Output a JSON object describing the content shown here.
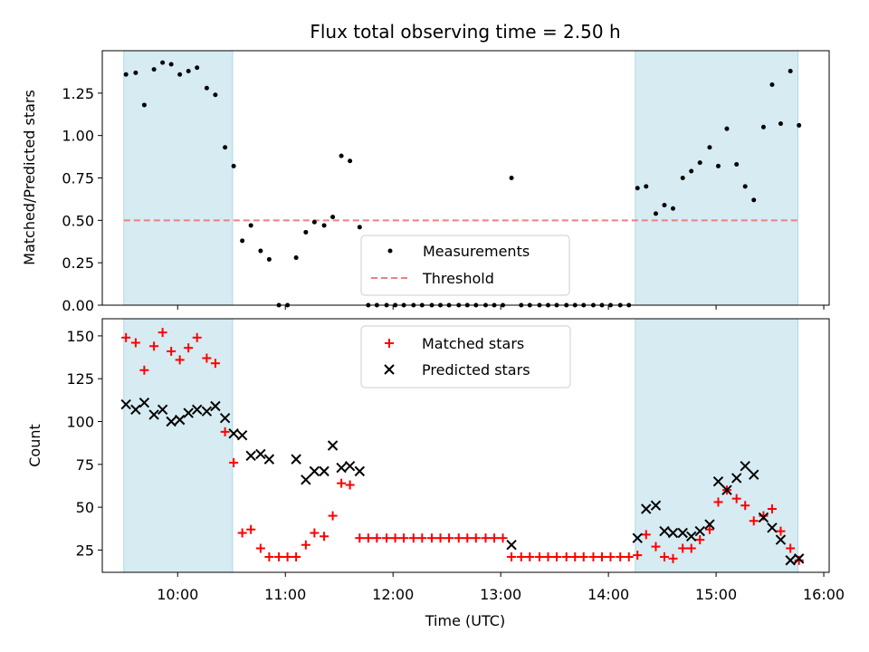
{
  "chart_data": [
    {
      "type": "scatter",
      "title": "Flux total observing time = 2.50 h",
      "xlabel": "",
      "ylabel": "Matched/Predicted stars",
      "xlim": [
        9.3,
        16.05
      ],
      "ylim": [
        0,
        1.5
      ],
      "yticks": [
        0,
        0.25,
        0.5,
        0.75,
        1.0,
        1.25
      ],
      "ytick_labels": [
        "0.00",
        "0.25",
        "0.50",
        "0.75",
        "1.00",
        "1.25"
      ],
      "xticks": [
        10,
        11,
        12,
        13,
        14,
        15,
        16
      ],
      "shaded_ranges": [
        [
          9.5,
          10.51
        ],
        [
          14.25,
          15.76
        ]
      ],
      "shade_color": "#add8e6",
      "threshold": {
        "name": "Threshold",
        "value": 0.5,
        "color": "#f08080"
      },
      "series": [
        {
          "name": "Measurements",
          "color": "#000000",
          "x": [
            9.52,
            9.61,
            9.69,
            9.78,
            9.86,
            9.94,
            10.02,
            10.1,
            10.18,
            10.27,
            10.35,
            10.44,
            10.52,
            10.6,
            10.68,
            10.77,
            10.85,
            10.94,
            11.02,
            11.1,
            11.19,
            11.27,
            11.36,
            11.44,
            11.52,
            11.6,
            11.69,
            11.77,
            11.85,
            11.94,
            12.02,
            12.1,
            12.19,
            12.27,
            12.36,
            12.44,
            12.52,
            12.61,
            12.69,
            12.77,
            12.86,
            12.94,
            13.02,
            13.1,
            13.19,
            13.27,
            13.36,
            13.44,
            13.52,
            13.61,
            13.69,
            13.77,
            13.86,
            13.94,
            14.02,
            14.11,
            14.19,
            14.27,
            14.35,
            14.44,
            14.52,
            14.6,
            14.69,
            14.77,
            14.85,
            14.94,
            15.02,
            15.1,
            15.19,
            15.27,
            15.35,
            15.44,
            15.52,
            15.6,
            15.69,
            15.77
          ],
          "y": [
            1.36,
            1.37,
            1.18,
            1.39,
            1.43,
            1.42,
            1.36,
            1.38,
            1.4,
            1.28,
            1.24,
            0.93,
            0.82,
            0.38,
            0.47,
            0.32,
            0.27,
            0.0,
            0.0,
            0.28,
            0.43,
            0.49,
            0.47,
            0.52,
            0.88,
            0.85,
            0.46,
            0.0,
            0.0,
            0.0,
            0.0,
            0.0,
            0.0,
            0.0,
            0.0,
            0.0,
            0.0,
            0.0,
            0.0,
            0.0,
            0.0,
            0.0,
            0.0,
            0.75,
            0.0,
            0.0,
            0.0,
            0.0,
            0.0,
            0.0,
            0.0,
            0.0,
            0.0,
            0.0,
            0.0,
            0.0,
            0.0,
            0.69,
            0.7,
            0.54,
            0.59,
            0.57,
            0.75,
            0.79,
            0.84,
            0.93,
            0.82,
            1.04,
            0.83,
            0.7,
            0.62,
            1.05,
            1.3,
            1.07,
            1.38,
            1.06
          ]
        }
      ],
      "legend": [
        "Measurements",
        "Threshold"
      ],
      "legend_position": "lower center"
    },
    {
      "type": "scatter",
      "title": "",
      "xlabel": "Time (UTC)",
      "ylabel": "Count",
      "xlim": [
        9.3,
        16.05
      ],
      "ylim": [
        12,
        160
      ],
      "yticks": [
        25,
        50,
        75,
        100,
        125,
        150
      ],
      "ytick_labels": [
        "25",
        "50",
        "75",
        "100",
        "125",
        "150"
      ],
      "xticks": [
        10,
        11,
        12,
        13,
        14,
        15,
        16
      ],
      "xtick_labels": [
        "10:00",
        "11:00",
        "12:00",
        "13:00",
        "14:00",
        "15:00",
        "16:00"
      ],
      "shaded_ranges": [
        [
          9.5,
          10.51
        ],
        [
          14.25,
          15.76
        ]
      ],
      "shade_color": "#add8e6",
      "series": [
        {
          "name": "Matched stars",
          "marker": "plus",
          "color": "#ff0000",
          "x": [
            9.52,
            9.61,
            9.69,
            9.78,
            9.86,
            9.94,
            10.02,
            10.1,
            10.18,
            10.27,
            10.35,
            10.44,
            10.52,
            10.6,
            10.68,
            10.77,
            10.85,
            10.94,
            11.02,
            11.1,
            11.19,
            11.27,
            11.36,
            11.44,
            11.52,
            11.6,
            11.69,
            11.77,
            11.85,
            11.94,
            12.02,
            12.1,
            12.19,
            12.27,
            12.36,
            12.44,
            12.52,
            12.61,
            12.69,
            12.77,
            12.86,
            12.94,
            13.02,
            13.1,
            13.19,
            13.27,
            13.36,
            13.44,
            13.52,
            13.61,
            13.69,
            13.77,
            13.86,
            13.94,
            14.02,
            14.11,
            14.19,
            14.27,
            14.35,
            14.44,
            14.52,
            14.6,
            14.69,
            14.77,
            14.85,
            14.94,
            15.02,
            15.1,
            15.19,
            15.27,
            15.35,
            15.44,
            15.52,
            15.6,
            15.69,
            15.77
          ],
          "y": [
            149,
            146,
            130,
            144,
            152,
            141,
            136,
            143,
            149,
            137,
            134,
            94,
            76,
            35,
            37,
            26,
            21,
            21,
            21,
            21,
            28,
            35,
            33,
            45,
            64,
            63,
            32,
            32,
            32,
            32,
            32,
            32,
            32,
            32,
            32,
            32,
            32,
            32,
            32,
            32,
            32,
            32,
            32,
            21,
            21,
            21,
            21,
            21,
            21,
            21,
            21,
            21,
            21,
            21,
            21,
            21,
            21,
            22,
            34,
            27,
            21,
            20,
            26,
            26,
            31,
            37,
            53,
            60,
            55,
            51,
            42,
            45,
            49,
            36,
            26,
            19
          ]
        },
        {
          "name": "Predicted stars",
          "marker": "x",
          "color": "#000000",
          "x": [
            9.52,
            9.61,
            9.69,
            9.78,
            9.86,
            9.94,
            10.02,
            10.1,
            10.18,
            10.27,
            10.35,
            10.44,
            10.52,
            10.6,
            10.68,
            10.77,
            10.85,
            11.1,
            11.19,
            11.27,
            11.36,
            11.44,
            11.52,
            11.6,
            11.69,
            13.1,
            14.27,
            14.35,
            14.44,
            14.52,
            14.6,
            14.69,
            14.77,
            14.85,
            14.94,
            15.02,
            15.1,
            15.19,
            15.27,
            15.35,
            15.44,
            15.52,
            15.6,
            15.69,
            15.77
          ],
          "y": [
            110,
            107,
            111,
            104,
            107,
            100,
            101,
            105,
            107,
            106,
            109,
            102,
            93,
            92,
            80,
            81,
            78,
            78,
            66,
            71,
            71,
            86,
            73,
            74,
            71,
            28,
            32,
            49,
            51,
            36,
            35,
            35,
            33,
            36,
            40,
            65,
            60,
            67,
            74,
            69,
            44,
            38,
            31,
            19,
            20
          ]
        }
      ],
      "legend": [
        "Matched stars",
        "Predicted stars"
      ],
      "legend_position": "upper center"
    }
  ]
}
